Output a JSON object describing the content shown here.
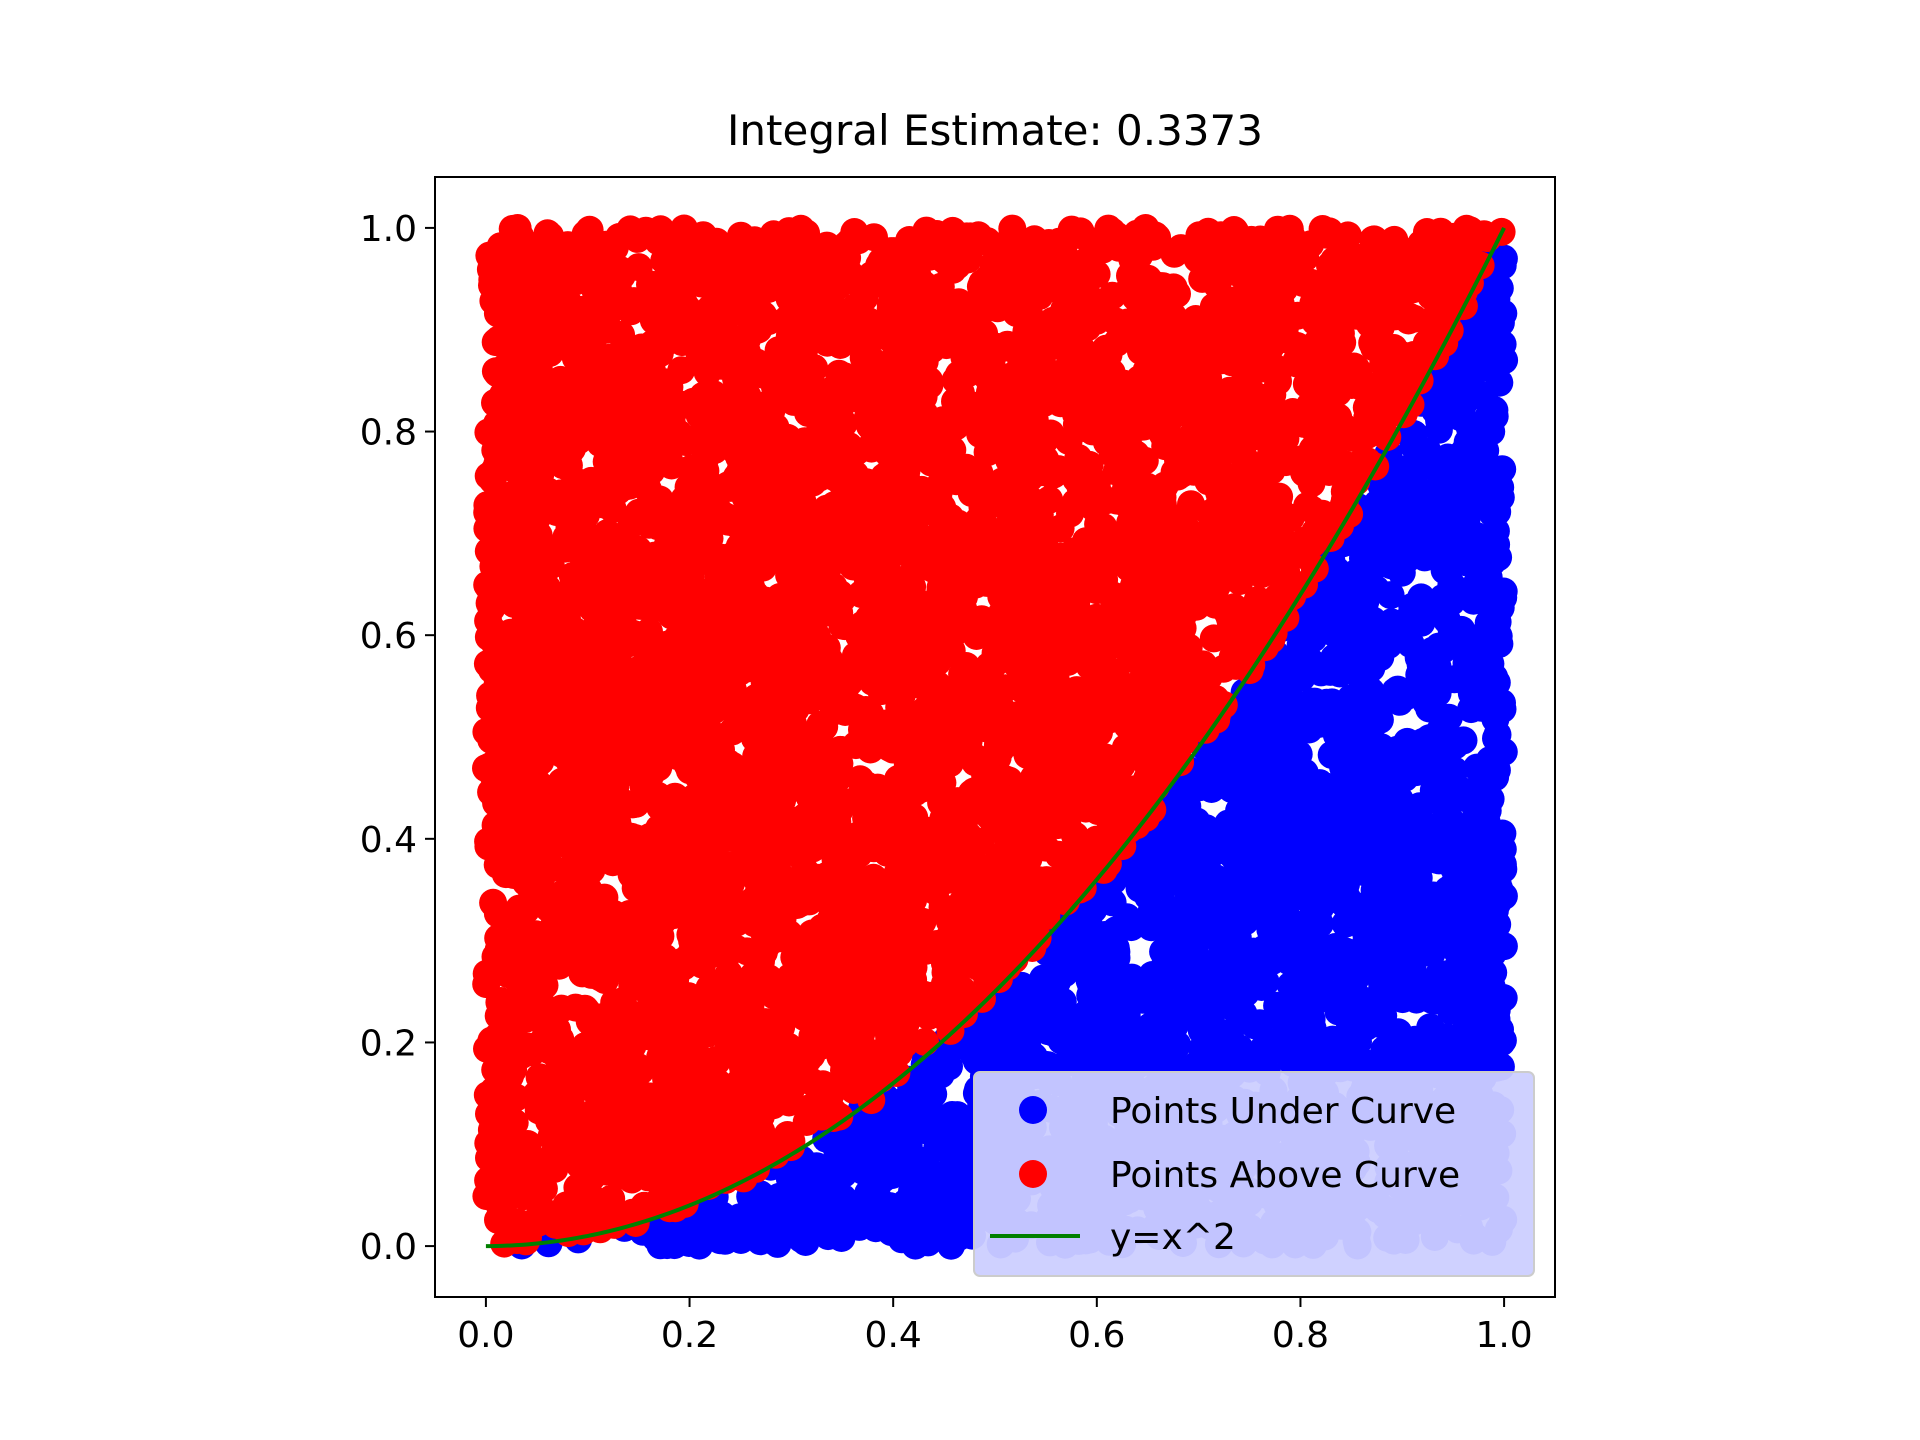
{
  "chart_data": {
    "type": "scatter",
    "title": "Integral Estimate: 0.3373",
    "xlabel": "",
    "ylabel": "",
    "xlim": [
      -0.05,
      1.05
    ],
    "ylim": [
      -0.05,
      1.05
    ],
    "grid": false,
    "legend_position": "lower-right",
    "x_ticks": [
      "0.0",
      "0.2",
      "0.4",
      "0.6",
      "0.8",
      "1.0"
    ],
    "y_ticks": [
      "0.0",
      "0.2",
      "0.4",
      "0.6",
      "0.8",
      "1.0"
    ],
    "x_tick_values": [
      0.0,
      0.2,
      0.4,
      0.6,
      0.8,
      1.0
    ],
    "y_tick_values": [
      0.0,
      0.2,
      0.4,
      0.6,
      0.8,
      1.0
    ],
    "sample_domain": {
      "x": [
        0,
        1
      ],
      "y": [
        0,
        1
      ]
    },
    "series": [
      {
        "name": "Points Under Curve",
        "kind": "scatter",
        "color": "#0000ff",
        "rule": "y < x^2"
      },
      {
        "name": "Points Above Curve",
        "kind": "scatter",
        "color": "#ff0000",
        "rule": "y >= x^2"
      },
      {
        "name": "y=x^2",
        "kind": "line",
        "color": "#008000",
        "x_range": [
          0,
          1
        ]
      }
    ]
  }
}
